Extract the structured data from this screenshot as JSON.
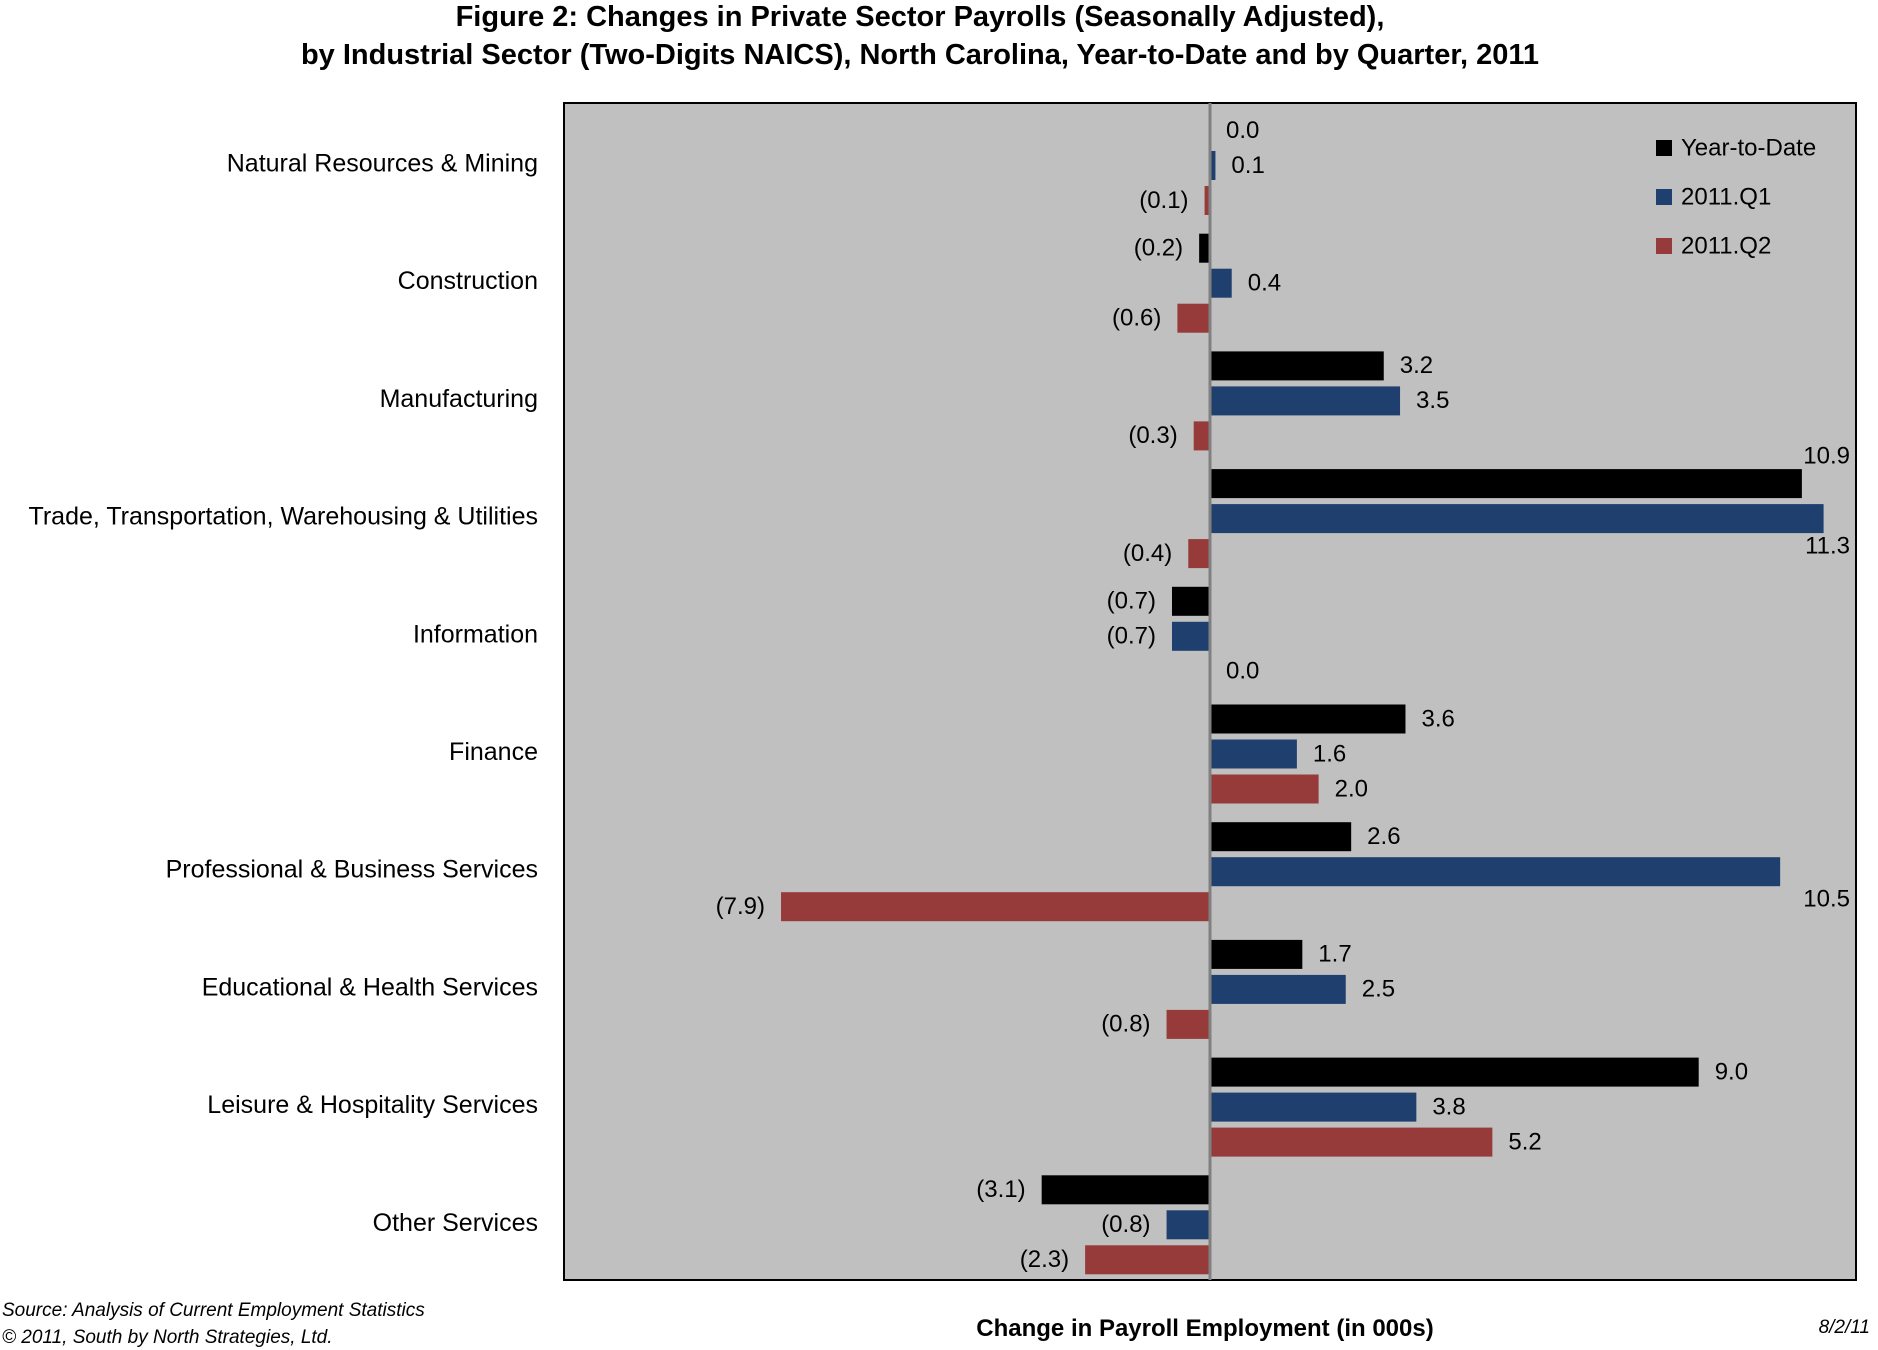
{
  "chart_data": {
    "type": "bar",
    "orientation": "horizontal",
    "title": "Figure 2: Changes in Private Sector Payrolls (Seasonally Adjusted),",
    "subtitle": "by Industrial Sector (Two-Digits NAICS), North Carolina, Year-to-Date and by Quarter, 2011",
    "xlabel": "Change in Payroll Employment (in 000s)",
    "ylabel": "",
    "xlim": [
      -12,
      12
    ],
    "grid": false,
    "legend_position": "top-right",
    "categories": [
      "Natural Resources & Mining",
      "Construction",
      "Manufacturing",
      "Trade, Transportation, Warehousing & Utilities",
      "Information",
      "Finance",
      "Professional & Business Services",
      "Educational & Health Services",
      "Leisure & Hospitality Services",
      "Other Services"
    ],
    "series": [
      {
        "name": "Year-to-Date",
        "color": "#000000",
        "values": [
          0.0,
          -0.2,
          3.2,
          10.9,
          -0.7,
          3.6,
          2.6,
          1.7,
          9.0,
          -3.1
        ],
        "labels": [
          "0.0",
          "(0.2)",
          "3.2",
          "10.9",
          "(0.7)",
          "3.6",
          "2.6",
          "1.7",
          "9.0",
          "(3.1)"
        ]
      },
      {
        "name": "2011.Q1",
        "color": "#1f3f6e",
        "values": [
          0.1,
          0.4,
          3.5,
          11.3,
          -0.7,
          1.6,
          10.5,
          2.5,
          3.8,
          -0.8
        ],
        "labels": [
          "0.1",
          "0.4",
          "3.5",
          "11.3",
          "(0.7)",
          "1.6",
          "10.5",
          "2.5",
          "3.8",
          "(0.8)"
        ]
      },
      {
        "name": "2011.Q2",
        "color": "#963a3a",
        "values": [
          -0.1,
          -0.6,
          -0.3,
          -0.4,
          0.0,
          2.0,
          -7.9,
          -0.8,
          5.2,
          -2.3
        ],
        "labels": [
          "(0.1)",
          "(0.6)",
          "(0.3)",
          "(0.4)",
          "0.0",
          "2.0",
          "(7.9)",
          "(0.8)",
          "5.2",
          "(2.3)"
        ]
      }
    ]
  },
  "colors": {
    "plot_background": "#c0c0c0",
    "zero_line": "#808080",
    "frame": "#000000"
  },
  "footer": {
    "source": "Source: Analysis of Current Employment Statistics",
    "copyright": "© 2011, South by North Strategies, Ltd.",
    "date": "8/2/11"
  }
}
